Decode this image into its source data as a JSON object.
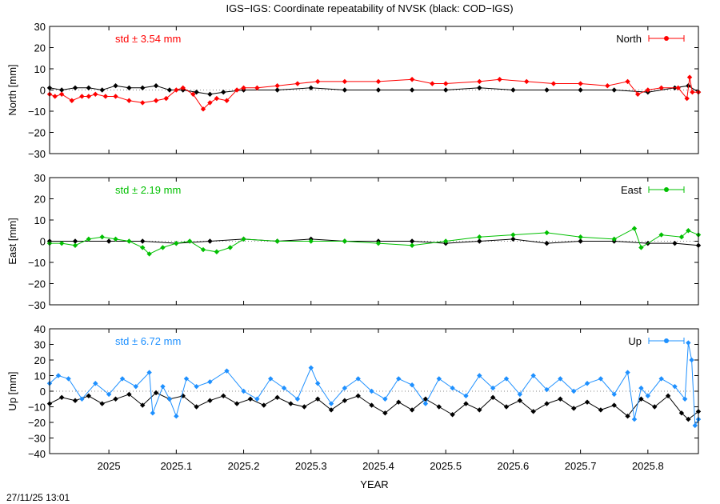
{
  "page": {
    "title": "IGS−IGS: Coordinate repeatability of NVSK (black: COD−IGS)",
    "xlabel": "YEAR",
    "timestamp": "27/11/25 13:01"
  },
  "chart_data": [
    {
      "type": "line",
      "panel": "north",
      "ylabel": "North [mm]",
      "ylim": [
        -30,
        30
      ],
      "yticks": [
        "30",
        "20",
        "10",
        "0",
        "−10",
        "−20",
        "−30"
      ],
      "ytick_values": [
        30,
        20,
        10,
        0,
        -10,
        -20,
        -30
      ],
      "xlim": [
        2024.912,
        2025.875
      ],
      "xticks": [
        "2025",
        "2025.1",
        "2025.2",
        "2025.3",
        "2025.4",
        "2025.5",
        "2025.6",
        "2025.7",
        "2025.8"
      ],
      "xtick_values": [
        2025.0,
        2025.1,
        2025.2,
        2025.3,
        2025.4,
        2025.5,
        2025.6,
        2025.7,
        2025.8
      ],
      "grid": false,
      "legend_position": "top-right",
      "legend": "North",
      "std_label": "std ± 3.54 mm",
      "series": [
        {
          "name": "North",
          "color": "#ff0000",
          "x": [
            2024.912,
            2024.92,
            2024.93,
            2024.945,
            2024.96,
            2024.97,
            2024.98,
            2024.995,
            2025.01,
            2025.03,
            2025.05,
            2025.07,
            2025.085,
            2025.1,
            2025.11,
            2025.125,
            2025.14,
            2025.15,
            2025.16,
            2025.175,
            2025.19,
            2025.2,
            2025.22,
            2025.25,
            2025.28,
            2025.31,
            2025.35,
            2025.4,
            2025.45,
            2025.48,
            2025.5,
            2025.55,
            2025.58,
            2025.62,
            2025.66,
            2025.7,
            2025.74,
            2025.77,
            2025.785,
            2025.8,
            2025.82,
            2025.845,
            2025.858,
            2025.862,
            2025.866,
            2025.875
          ],
          "y": [
            -2,
            -3,
            -2,
            -5,
            -3,
            -3,
            -2,
            -3,
            -3,
            -5,
            -6,
            -5,
            -4,
            0,
            1,
            -2,
            -9,
            -6,
            -4,
            -5,
            0,
            1,
            1,
            2,
            3,
            4,
            4,
            4,
            5,
            3,
            3,
            4,
            5,
            4,
            3,
            3,
            2,
            4,
            -2,
            0,
            1,
            1,
            -4,
            6,
            -1,
            -1
          ]
        },
        {
          "name": "COD−IGS",
          "color": "#000000",
          "x": [
            2024.912,
            2024.93,
            2024.95,
            2024.97,
            2024.99,
            2025.01,
            2025.03,
            2025.05,
            2025.07,
            2025.09,
            2025.11,
            2025.13,
            2025.15,
            2025.17,
            2025.2,
            2025.25,
            2025.3,
            2025.35,
            2025.4,
            2025.45,
            2025.5,
            2025.55,
            2025.6,
            2025.65,
            2025.7,
            2025.75,
            2025.8,
            2025.84,
            2025.86,
            2025.875
          ],
          "y": [
            1,
            0,
            1,
            1,
            0,
            2,
            1,
            1,
            2,
            0,
            0,
            -1,
            -2,
            -1,
            0,
            0,
            1,
            0,
            0,
            0,
            0,
            1,
            0,
            0,
            0,
            0,
            -1,
            1,
            2,
            -1
          ]
        }
      ]
    },
    {
      "type": "line",
      "panel": "east",
      "ylabel": "East [mm]",
      "ylim": [
        -30,
        30
      ],
      "yticks": [
        "30",
        "20",
        "10",
        "0",
        "−10",
        "−20",
        "−30"
      ],
      "ytick_values": [
        30,
        20,
        10,
        0,
        -10,
        -20,
        -30
      ],
      "xlim": [
        2024.912,
        2025.875
      ],
      "xticks": [
        "2025",
        "2025.1",
        "2025.2",
        "2025.3",
        "2025.4",
        "2025.5",
        "2025.6",
        "2025.7",
        "2025.8"
      ],
      "xtick_values": [
        2025.0,
        2025.1,
        2025.2,
        2025.3,
        2025.4,
        2025.5,
        2025.6,
        2025.7,
        2025.8
      ],
      "grid": false,
      "legend_position": "top-right",
      "legend": "East",
      "std_label": "std ± 2.19 mm",
      "series": [
        {
          "name": "East",
          "color": "#00c000",
          "x": [
            2024.912,
            2024.93,
            2024.95,
            2024.97,
            2024.99,
            2025.01,
            2025.03,
            2025.05,
            2025.06,
            2025.08,
            2025.1,
            2025.12,
            2025.14,
            2025.16,
            2025.18,
            2025.2,
            2025.25,
            2025.3,
            2025.35,
            2025.4,
            2025.45,
            2025.5,
            2025.55,
            2025.6,
            2025.65,
            2025.7,
            2025.75,
            2025.78,
            2025.79,
            2025.82,
            2025.85,
            2025.86,
            2025.875
          ],
          "y": [
            -1,
            -1,
            -2,
            1,
            2,
            1,
            0,
            -3,
            -6,
            -3,
            -1,
            0,
            -4,
            -5,
            -3,
            1,
            0,
            0,
            0,
            -1,
            -2,
            0,
            2,
            3,
            4,
            2,
            1,
            6,
            -3,
            3,
            2,
            5,
            3
          ]
        },
        {
          "name": "COD−IGS",
          "color": "#000000",
          "x": [
            2024.912,
            2024.95,
            2025.0,
            2025.05,
            2025.1,
            2025.15,
            2025.2,
            2025.25,
            2025.3,
            2025.35,
            2025.4,
            2025.45,
            2025.5,
            2025.55,
            2025.6,
            2025.65,
            2025.7,
            2025.75,
            2025.8,
            2025.84,
            2025.875
          ],
          "y": [
            0,
            0,
            0,
            0,
            -1,
            0,
            1,
            0,
            1,
            0,
            0,
            0,
            -1,
            0,
            1,
            -1,
            0,
            0,
            -1,
            -1,
            -2
          ]
        }
      ]
    },
    {
      "type": "line",
      "panel": "up",
      "ylabel": "Up [mm]",
      "ylim": [
        -40,
        40
      ],
      "yticks": [
        "40",
        "30",
        "20",
        "10",
        "0",
        "−10",
        "−20",
        "−30",
        "−40"
      ],
      "ytick_values": [
        40,
        30,
        20,
        10,
        0,
        -10,
        -20,
        -30,
        -40
      ],
      "xlim": [
        2024.912,
        2025.875
      ],
      "xticks": [
        "2025",
        "2025.1",
        "2025.2",
        "2025.3",
        "2025.4",
        "2025.5",
        "2025.6",
        "2025.7",
        "2025.8"
      ],
      "xtick_values": [
        2025.0,
        2025.1,
        2025.2,
        2025.3,
        2025.4,
        2025.5,
        2025.6,
        2025.7,
        2025.8
      ],
      "grid": false,
      "legend_position": "top-right",
      "legend": "Up",
      "std_label": "std ± 6.72 mm",
      "series": [
        {
          "name": "Up",
          "color": "#1e90ff",
          "x": [
            2024.912,
            2024.925,
            2024.94,
            2024.96,
            2024.98,
            2025.0,
            2025.02,
            2025.04,
            2025.06,
            2025.065,
            2025.08,
            2025.09,
            2025.1,
            2025.115,
            2025.13,
            2025.15,
            2025.175,
            2025.2,
            2025.22,
            2025.24,
            2025.26,
            2025.28,
            2025.3,
            2025.31,
            2025.33,
            2025.35,
            2025.37,
            2025.39,
            2025.41,
            2025.43,
            2025.45,
            2025.47,
            2025.49,
            2025.51,
            2025.53,
            2025.55,
            2025.57,
            2025.59,
            2025.61,
            2025.63,
            2025.65,
            2025.67,
            2025.69,
            2025.71,
            2025.73,
            2025.75,
            2025.77,
            2025.78,
            2025.79,
            2025.8,
            2025.82,
            2025.84,
            2025.855,
            2025.86,
            2025.865,
            2025.87,
            2025.875
          ],
          "y": [
            5,
            10,
            8,
            -5,
            5,
            -2,
            8,
            3,
            12,
            -14,
            3,
            -5,
            -16,
            8,
            3,
            6,
            13,
            0,
            -5,
            8,
            2,
            -5,
            15,
            5,
            -8,
            2,
            8,
            0,
            -5,
            8,
            4,
            -8,
            8,
            2,
            -3,
            10,
            2,
            8,
            -2,
            10,
            1,
            8,
            0,
            5,
            8,
            -2,
            12,
            -18,
            2,
            -3,
            8,
            3,
            -5,
            31,
            20,
            -22,
            -18
          ]
        },
        {
          "name": "COD−IGS",
          "color": "#000000",
          "x": [
            2024.912,
            2024.93,
            2024.95,
            2024.97,
            2024.99,
            2025.01,
            2025.03,
            2025.05,
            2025.07,
            2025.09,
            2025.11,
            2025.13,
            2025.15,
            2025.17,
            2025.19,
            2025.21,
            2025.23,
            2025.25,
            2025.27,
            2025.29,
            2025.31,
            2025.33,
            2025.35,
            2025.37,
            2025.39,
            2025.41,
            2025.43,
            2025.45,
            2025.47,
            2025.49,
            2025.51,
            2025.53,
            2025.55,
            2025.57,
            2025.59,
            2025.61,
            2025.63,
            2025.65,
            2025.67,
            2025.69,
            2025.71,
            2025.73,
            2025.75,
            2025.77,
            2025.79,
            2025.81,
            2025.83,
            2025.85,
            2025.86,
            2025.875
          ],
          "y": [
            -8,
            -4,
            -6,
            -3,
            -8,
            -5,
            -2,
            -9,
            -1,
            -5,
            -3,
            -10,
            -6,
            -3,
            -8,
            -5,
            -9,
            -4,
            -8,
            -10,
            -5,
            -12,
            -6,
            -3,
            -9,
            -14,
            -7,
            -12,
            -5,
            -10,
            -15,
            -8,
            -12,
            -4,
            -10,
            -6,
            -13,
            -8,
            -5,
            -11,
            -7,
            -12,
            -9,
            -16,
            -5,
            -10,
            -3,
            -14,
            -18,
            -13
          ]
        }
      ]
    }
  ]
}
